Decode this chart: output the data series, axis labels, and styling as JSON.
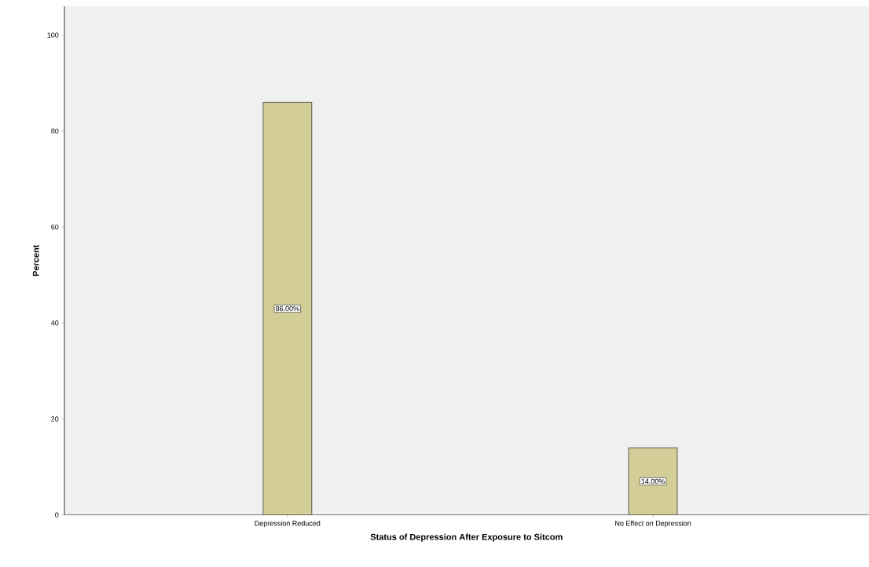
{
  "chart_data": {
    "type": "bar",
    "xlabel": "Status of Depression After Exposure to Sitcom",
    "ylabel": "Percent",
    "categories": [
      "Depression Reduced",
      "No Effect on Depression"
    ],
    "values": [
      86,
      14
    ],
    "value_labels": [
      "86.00%",
      "14.00%"
    ],
    "color": "#d3ce97",
    "ylim": [
      0,
      106
    ],
    "yticks": [
      0,
      20,
      40,
      60,
      80,
      100
    ],
    "grid": false
  }
}
